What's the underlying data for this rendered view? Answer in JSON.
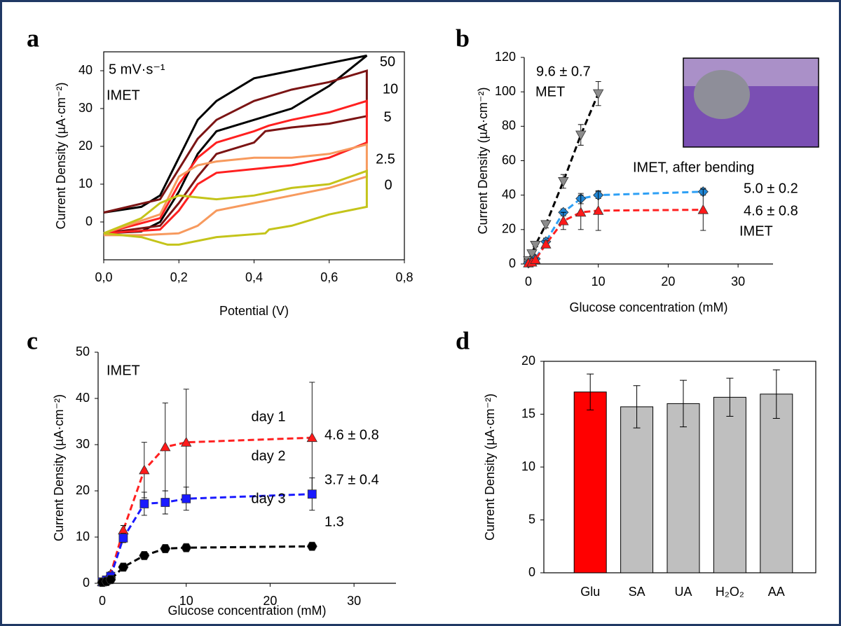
{
  "chart_data": [
    {
      "type": "line",
      "panel_label": "a",
      "frame": true,
      "x_label": "Potential (V)",
      "y_label": "Current Density (µA·cm⁻²)",
      "annotations": [
        {
          "text": "5 mV·s⁻¹",
          "color": "#000000"
        },
        {
          "text": "IMET",
          "color": "#000000"
        }
      ],
      "xlim": [
        0,
        0.8
      ],
      "xticks": [
        {
          "value": 0,
          "label": "0,0"
        },
        {
          "value": 0.2,
          "label": "0,2"
        },
        {
          "value": 0.4,
          "label": "0,4"
        },
        {
          "value": 0.6,
          "label": "0,6"
        },
        {
          "value": 0.8,
          "label": "0,8"
        }
      ],
      "ylim": [
        -10,
        45
      ],
      "yticks": [
        0,
        10,
        20,
        30,
        40
      ],
      "series": [
        {
          "name": "50",
          "color": "#000000",
          "x": [
            0,
            0.1,
            0.15,
            0.2,
            0.25,
            0.3,
            0.4,
            0.5,
            0.6,
            0.7,
            0.6,
            0.5,
            0.4,
            0.3,
            0.25,
            0.2,
            0.15,
            0.1,
            0
          ],
          "values": [
            -3,
            -2.5,
            0,
            8,
            18,
            24,
            27,
            30,
            36,
            44,
            42,
            40,
            38,
            32,
            27,
            17,
            7,
            4,
            2.5
          ]
        },
        {
          "name": "10",
          "color": "#7b1414",
          "x": [
            0,
            0.15,
            0.2,
            0.25,
            0.3,
            0.4,
            0.5,
            0.6,
            0.7,
            0.7,
            0.6,
            0.5,
            0.43,
            0.4,
            0.3,
            0.25,
            0.2,
            0.15,
            0
          ],
          "values": [
            2.5,
            6,
            14,
            22,
            27,
            32,
            35,
            37,
            40,
            28,
            26,
            25,
            24,
            21,
            18,
            12,
            5,
            -1,
            -3
          ]
        },
        {
          "name": "5",
          "color": "#ff2020",
          "x": [
            0,
            0.15,
            0.2,
            0.25,
            0.3,
            0.4,
            0.44,
            0.5,
            0.6,
            0.7,
            0.7,
            0.6,
            0.5,
            0.4,
            0.3,
            0.25,
            0.2,
            0.15,
            0
          ],
          "values": [
            -3,
            1,
            10,
            17,
            21,
            24,
            25.5,
            27,
            29,
            32,
            21,
            17,
            15,
            14,
            13,
            10,
            3,
            -2,
            -3
          ]
        },
        {
          "name": "2.5",
          "color": "#f79a5e",
          "x": [
            0,
            0.15,
            0.2,
            0.25,
            0.3,
            0.4,
            0.5,
            0.6,
            0.7,
            0.7,
            0.6,
            0.5,
            0.4,
            0.3,
            0.25,
            0.2,
            0.1,
            0
          ],
          "values": [
            -3,
            2,
            12,
            15,
            16,
            17,
            17,
            18,
            20.5,
            12,
            9,
            7,
            5,
            3,
            -1,
            -3,
            -3.5,
            -3.5
          ]
        },
        {
          "name": "0",
          "color": "#c4c41a",
          "x": [
            0,
            0.1,
            0.15,
            0.2,
            0.3,
            0.4,
            0.5,
            0.6,
            0.7,
            0.7,
            0.6,
            0.5,
            0.44,
            0.43,
            0.3,
            0.2,
            0.17,
            0.1,
            0
          ],
          "values": [
            -3,
            1,
            5,
            7,
            6,
            7,
            9,
            10,
            13.5,
            4,
            2,
            -1,
            -2,
            -3,
            -4,
            -6,
            -6,
            -4,
            -3
          ]
        }
      ]
    },
    {
      "type": "line",
      "panel_label": "b",
      "frame": false,
      "x_label": "Glucose concentration (mM)",
      "y_label": "Current Density (µA·cm⁻²)",
      "annotations": [
        {
          "text": "9.6 ± 0.7",
          "color": "#808080"
        },
        {
          "text": "5.0 ± 0.2",
          "color": "#1f86d6"
        },
        {
          "text": "4.6 ± 0.8",
          "color": "#ff1a1a"
        }
      ],
      "xlim": [
        -0.6,
        35
      ],
      "xticks": [
        0,
        10,
        20,
        30
      ],
      "ylim": [
        0,
        120
      ],
      "yticks": [
        0,
        20,
        40,
        60,
        80,
        100,
        120
      ],
      "series": [
        {
          "name": "MET",
          "color": "#8c8c8c",
          "line_color": "#000000",
          "marker": "triangle-down",
          "x": [
            0,
            0.5,
            1,
            2.5,
            5,
            7.5,
            10
          ],
          "values": [
            2,
            6,
            11,
            23,
            48,
            75,
            99
          ],
          "errors": [
            1,
            1.5,
            1,
            2,
            4,
            6,
            7
          ]
        },
        {
          "name": "IMET, after bending",
          "color": "#1f86d6",
          "line_color": "#2ea0f5",
          "marker": "diamond",
          "x": [
            0,
            0.5,
            1,
            2.5,
            5,
            7.5,
            10,
            25
          ],
          "values": [
            0.5,
            1.5,
            3,
            13,
            30,
            38,
            40,
            42
          ],
          "errors": [
            0.5,
            0.5,
            1,
            2,
            2,
            3,
            2,
            2
          ]
        },
        {
          "name": "IMET",
          "color": "#ff1a1a",
          "line_color": "#ff2020",
          "marker": "triangle-up",
          "x": [
            0,
            0.5,
            1,
            2.5,
            5,
            7.5,
            10,
            25
          ],
          "values": [
            0.5,
            1,
            2.5,
            11.5,
            25,
            30,
            31,
            31.5
          ],
          "errors": [
            0.5,
            0.5,
            1,
            2,
            5,
            10,
            11.5,
            12
          ]
        }
      ]
    },
    {
      "type": "line",
      "panel_label": "c",
      "frame": false,
      "x_label": "Glucose concentration (mM)",
      "y_label": "Current Density (µA·cm⁻²)",
      "annotations": [
        {
          "text": "IMET",
          "color": "#000000"
        },
        {
          "text": "4.6 ± 0.8",
          "color": "#ff1a1a"
        },
        {
          "text": "3.7 ± 0.4",
          "color": "#1a1aff"
        },
        {
          "text": "1.3",
          "color": "#000000"
        }
      ],
      "xlim": [
        -0.5,
        35
      ],
      "xticks": [
        0,
        10,
        20,
        30
      ],
      "ylim": [
        0,
        50
      ],
      "yticks": [
        0,
        10,
        20,
        30,
        40,
        50
      ],
      "series": [
        {
          "name": "day 1",
          "color": "#ff1a1a",
          "line_color": "#ff2020",
          "marker": "triangle-up",
          "x": [
            0,
            0.5,
            1,
            2.5,
            5,
            7.5,
            10,
            25
          ],
          "values": [
            0.3,
            0.8,
            2,
            11.5,
            24.5,
            29.5,
            30.5,
            31.5
          ],
          "errors": [
            0,
            0,
            0.5,
            1,
            6,
            9.5,
            11.5,
            12
          ]
        },
        {
          "name": "day 2",
          "color": "#1a1aff",
          "line_color": "#1a1aff",
          "marker": "square",
          "x": [
            0,
            0.5,
            1,
            2.5,
            5,
            7.5,
            10,
            25
          ],
          "values": [
            0.3,
            0.7,
            1.5,
            9.8,
            17.2,
            17.5,
            18.3,
            19.3
          ],
          "errors": [
            0,
            0,
            0.3,
            1,
            2.5,
            2.5,
            2.5,
            3.5
          ]
        },
        {
          "name": "day 3",
          "color": "#000000",
          "line_color": "#000000",
          "marker": "hexagon",
          "x": [
            0,
            0.5,
            1,
            2.5,
            5,
            7.5,
            10,
            25
          ],
          "values": [
            0.2,
            0.4,
            0.8,
            3.5,
            6,
            7.5,
            7.7,
            8
          ],
          "errors": [
            0,
            0,
            0,
            0.5,
            0.5,
            0.5,
            0.5,
            0.5
          ]
        }
      ]
    },
    {
      "type": "bar",
      "panel_label": "d",
      "frame": true,
      "y_label": "Current Density (µA·cm⁻²)",
      "categories": [
        "Glu",
        "SA",
        "UA",
        "H₂O₂",
        "AA"
      ],
      "values": [
        17.1,
        15.7,
        16.0,
        16.6,
        16.9
      ],
      "errors": [
        1.7,
        2.0,
        2.2,
        1.8,
        2.3
      ],
      "colors": [
        "#ff0000",
        "#bfbfbf",
        "#bfbfbf",
        "#bfbfbf",
        "#bfbfbf"
      ],
      "ylim": [
        0,
        20
      ],
      "yticks": [
        0,
        5,
        10,
        15,
        20
      ]
    }
  ]
}
